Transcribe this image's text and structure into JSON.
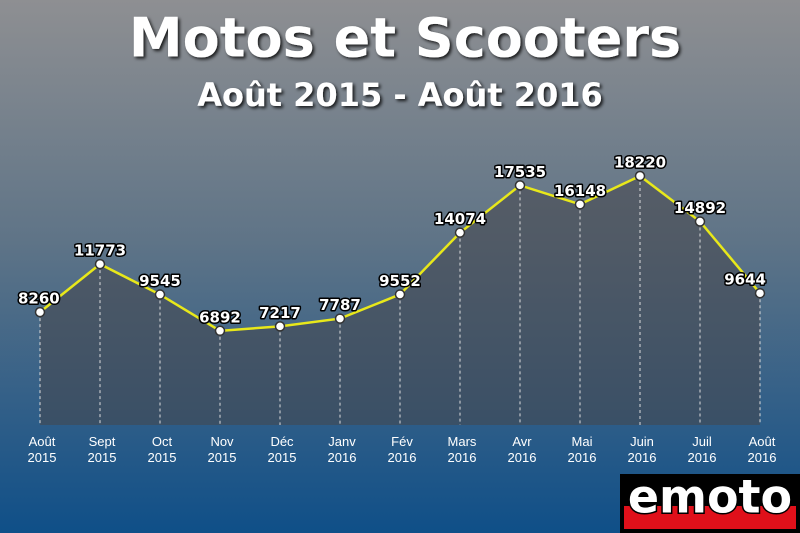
{
  "chart_data": {
    "type": "line",
    "title": "Motos et Scooters",
    "subtitle": "Août 2015 - Août 2016",
    "categories": [
      "Août 2015",
      "Sept 2015",
      "Oct 2015",
      "Nov 2015",
      "Déc 2015",
      "Janv 2016",
      "Fév 2016",
      "Mars 2016",
      "Avr 2016",
      "Mai 2016",
      "Juin 2016",
      "Juil 2016",
      "Août 2016"
    ],
    "values": [
      8260,
      11773,
      9545,
      6892,
      7217,
      7787,
      9552,
      14074,
      17535,
      16148,
      18220,
      14892,
      9644
    ],
    "color": "#e8e81a"
  },
  "logo": "emoto"
}
